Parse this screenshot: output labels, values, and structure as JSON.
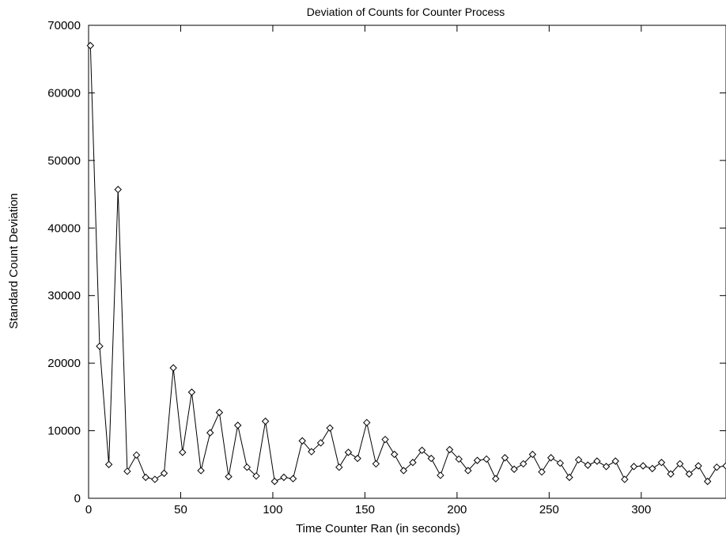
{
  "chart_data": {
    "type": "line",
    "title": "Deviation of Counts for Counter Process",
    "xlabel": "Time Counter Ran (in seconds)",
    "ylabel": "Standard Count Deviation",
    "xlim": [
      0,
      346
    ],
    "ylim": [
      0,
      70000
    ],
    "xticks": [
      0,
      50,
      100,
      150,
      200,
      250,
      300
    ],
    "yticks": [
      0,
      10000,
      20000,
      30000,
      40000,
      50000,
      60000,
      70000
    ],
    "grid": false,
    "marker": "diamond",
    "series": [
      {
        "x": [
          1,
          6,
          11,
          16,
          21,
          26,
          31,
          36,
          41,
          46,
          51,
          56,
          61,
          66,
          71,
          76,
          81,
          86,
          91,
          96,
          101,
          106,
          111,
          116,
          121,
          126,
          131,
          136,
          141,
          146,
          151,
          156,
          161,
          166,
          171,
          176,
          181,
          186,
          191,
          196,
          201,
          206,
          211,
          216,
          221,
          226,
          231,
          236,
          241,
          246,
          251,
          256,
          261,
          266,
          271,
          276,
          281,
          286,
          291,
          296,
          301,
          306,
          311,
          316,
          321,
          326,
          331,
          336,
          341,
          346
        ],
        "y": [
          67000,
          22500,
          5000,
          45700,
          4000,
          6400,
          3100,
          2800,
          3700,
          19300,
          6800,
          15700,
          4100,
          9700,
          12700,
          3200,
          10800,
          4600,
          3300,
          11400,
          2500,
          3100,
          2900,
          8500,
          6900,
          8200,
          10400,
          4600,
          6800,
          5900,
          11200,
          5100,
          8700,
          6500,
          4100,
          5300,
          7100,
          5900,
          3400,
          7200,
          5800,
          4100,
          5600,
          5800,
          2900,
          6000,
          4300,
          5100,
          6500,
          3900,
          6000,
          5200,
          3100,
          5700,
          4900,
          5500,
          4700,
          5500,
          2800,
          4700,
          4800,
          4400,
          5300,
          3600,
          5100,
          3600,
          4800,
          2500,
          4600,
          4800
        ]
      }
    ]
  }
}
